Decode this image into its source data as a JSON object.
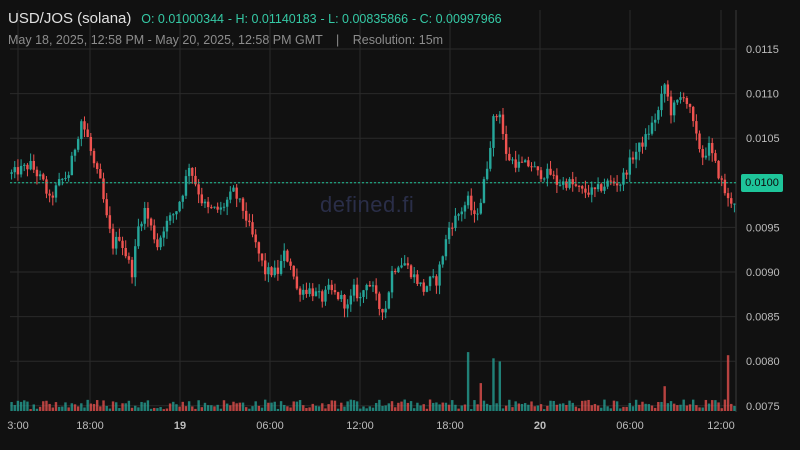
{
  "header": {
    "pair": "USD/JOS (solana)",
    "open": "O: 0.01000344",
    "high": "H: 0.01140183",
    "low": "L: 0.00835866",
    "close": "C: 0.00997966",
    "range": "May 18, 2025, 12:58 PM - May 20, 2025, 12:58 PM GMT",
    "separator": "|",
    "resolution": "Resolution: 15m"
  },
  "watermark": "defined.fi",
  "colors": {
    "up": "#26a69a",
    "down": "#ef5350",
    "background": "#111111",
    "grid": "#2a2a2a",
    "last_price_tag": "#1ec59a"
  },
  "chart_data": {
    "type": "candlestick",
    "x_ticks": [
      "3:00",
      "18:00",
      "19",
      "06:00",
      "12:00",
      "18:00",
      "20",
      "06:00",
      "12:00"
    ],
    "y_ticks": [
      "0.0115",
      "0.0110",
      "0.0105",
      "0.0100",
      "0.0095",
      "0.0090",
      "0.0085",
      "0.0080",
      "0.0075"
    ],
    "ylim": [
      0.0074,
      0.0118
    ],
    "last_price": "0.0100",
    "summary": {
      "open": 0.01000344,
      "high": 0.01140183,
      "low": 0.00835866,
      "close": 0.00997966
    },
    "close_path": [
      [
        0,
        0.0101
      ],
      [
        6,
        0.0102
      ],
      [
        10,
        0.01
      ],
      [
        12,
        0.0098
      ],
      [
        15,
        0.01
      ],
      [
        18,
        0.0101
      ],
      [
        20,
        0.0104
      ],
      [
        22,
        0.0107
      ],
      [
        24,
        0.0105
      ],
      [
        26,
        0.0102
      ],
      [
        28,
        0.01
      ],
      [
        30,
        0.0096
      ],
      [
        32,
        0.0093
      ],
      [
        34,
        0.0094
      ],
      [
        36,
        0.0092
      ],
      [
        38,
        0.009
      ],
      [
        40,
        0.0095
      ],
      [
        42,
        0.0097
      ],
      [
        44,
        0.0095
      ],
      [
        46,
        0.0093
      ],
      [
        48,
        0.0095
      ],
      [
        50,
        0.0096
      ],
      [
        52,
        0.0097
      ],
      [
        54,
        0.0099
      ],
      [
        56,
        0.0102
      ],
      [
        58,
        0.01
      ],
      [
        60,
        0.0098
      ],
      [
        62,
        0.0097
      ],
      [
        66,
        0.0097
      ],
      [
        70,
        0.0099
      ],
      [
        73,
        0.0097
      ],
      [
        76,
        0.0094
      ],
      [
        80,
        0.009
      ],
      [
        84,
        0.009
      ],
      [
        86,
        0.0092
      ],
      [
        88,
        0.0091
      ],
      [
        90,
        0.0088
      ],
      [
        94,
        0.0088
      ],
      [
        98,
        0.0087
      ],
      [
        100,
        0.0088
      ],
      [
        104,
        0.0087
      ],
      [
        106,
        0.0086
      ],
      [
        108,
        0.0088
      ],
      [
        110,
        0.0087
      ],
      [
        112,
        0.0089
      ],
      [
        114,
        0.0088
      ],
      [
        116,
        0.0086
      ],
      [
        118,
        0.0086
      ],
      [
        120,
        0.009
      ],
      [
        122,
        0.0091
      ],
      [
        124,
        0.0091
      ],
      [
        126,
        0.009
      ],
      [
        128,
        0.0089
      ],
      [
        130,
        0.0088
      ],
      [
        132,
        0.0089
      ],
      [
        134,
        0.0089
      ],
      [
        136,
        0.0092
      ],
      [
        138,
        0.0095
      ],
      [
        140,
        0.0096
      ],
      [
        142,
        0.0097
      ],
      [
        144,
        0.0098
      ],
      [
        146,
        0.0096
      ],
      [
        148,
        0.0098
      ],
      [
        150,
        0.0102
      ],
      [
        152,
        0.0107
      ],
      [
        154,
        0.0108
      ],
      [
        156,
        0.0103
      ],
      [
        160,
        0.0102
      ],
      [
        164,
        0.0102
      ],
      [
        166,
        0.0101
      ],
      [
        170,
        0.0101
      ],
      [
        172,
        0.01
      ],
      [
        176,
        0.01
      ],
      [
        180,
        0.0099
      ],
      [
        184,
        0.0099
      ],
      [
        188,
        0.01
      ],
      [
        192,
        0.01
      ],
      [
        196,
        0.0103
      ],
      [
        200,
        0.0105
      ],
      [
        204,
        0.0108
      ],
      [
        206,
        0.0111
      ],
      [
        208,
        0.0108
      ],
      [
        210,
        0.0109
      ],
      [
        212,
        0.011
      ],
      [
        214,
        0.0108
      ],
      [
        216,
        0.0105
      ],
      [
        218,
        0.0103
      ],
      [
        220,
        0.0104
      ],
      [
        222,
        0.0102
      ],
      [
        224,
        0.01
      ],
      [
        226,
        0.0098
      ],
      [
        228,
        0.0098
      ]
    ],
    "volume_spikes": [
      {
        "x": 144,
        "rel": 0.95
      },
      {
        "x": 148,
        "rel": 0.45
      },
      {
        "x": 152,
        "rel": 0.85
      },
      {
        "x": 154,
        "rel": 0.8
      },
      {
        "x": 206,
        "rel": 0.4
      },
      {
        "x": 226,
        "rel": 0.9
      }
    ]
  }
}
